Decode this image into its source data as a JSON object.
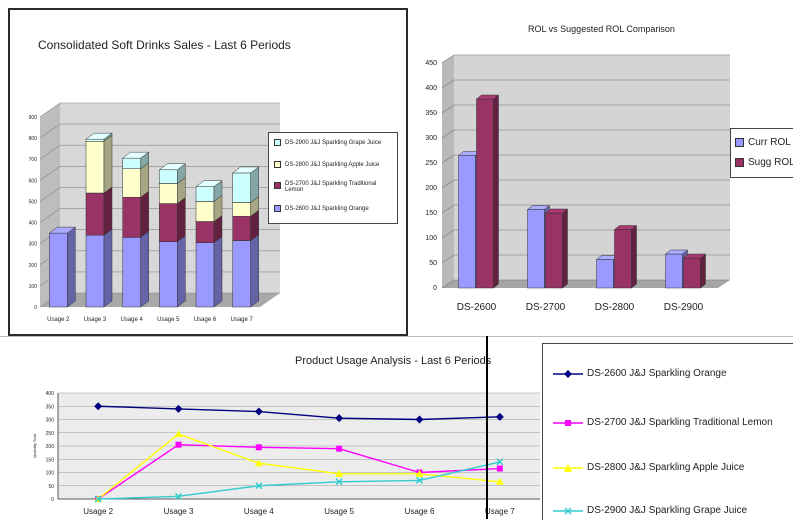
{
  "chart_data": [
    {
      "type": "bar",
      "stacked": true,
      "three_d": true,
      "title": "Consolidated Soft Drinks Sales - Last 6 Periods",
      "categories": [
        "Usage 2",
        "Usage 3",
        "Usage 4",
        "Usage 5",
        "Usage 6",
        "Usage 7"
      ],
      "ylim": [
        0,
        900
      ],
      "yticks": [
        0,
        100,
        200,
        300,
        400,
        500,
        600,
        700,
        800,
        900
      ],
      "series": [
        {
          "name": "DS-2600 J&J Sparkling Orange",
          "color": "#9999ff",
          "values": [
            350,
            340,
            330,
            310,
            305,
            315
          ]
        },
        {
          "name": "DS-2700 J&J Sparkling Traditional Lemon",
          "color": "#993366",
          "values": [
            0,
            200,
            190,
            180,
            100,
            115
          ]
        },
        {
          "name": "DS-2800 J&J Sparkling Apple Juice",
          "color": "#ffffcc",
          "values": [
            0,
            245,
            135,
            95,
            95,
            65
          ]
        },
        {
          "name": "DS-2900 J&J Sparkling Grape Juice",
          "color": "#ccffff",
          "values": [
            0,
            10,
            50,
            65,
            70,
            140
          ]
        }
      ],
      "legend_order": [
        "DS-2900 J&J Sparkling Grape Juice",
        "DS-2800 J&J Sparkling Apple Juice",
        "DS-2700 J&J Sparkling Traditional Lemon",
        "DS-2600 J&J Sparkling Orange"
      ],
      "legend": "right"
    },
    {
      "type": "bar",
      "three_d": true,
      "title": "ROL vs Suggested ROL Comparison",
      "categories": [
        "DS-2600",
        "DS-2700",
        "DS-2800",
        "DS-2900"
      ],
      "ylim": [
        0,
        450
      ],
      "yticks": [
        0,
        50,
        100,
        150,
        200,
        250,
        300,
        350,
        400,
        450
      ],
      "series": [
        {
          "name": "Curr ROL",
          "color": "#9999ff",
          "values": [
            265,
            157,
            57,
            68
          ]
        },
        {
          "name": "Sugg ROL",
          "color": "#993366",
          "values": [
            378,
            150,
            117,
            60
          ]
        }
      ],
      "legend": "right"
    },
    {
      "type": "line",
      "title": "Product Usage Analysis - Last 6 Periods",
      "ylabel": "Quantity Sold",
      "categories": [
        "Usage 2",
        "Usage 3",
        "Usage 4",
        "Usage 5",
        "Usage 6",
        "Usage 7"
      ],
      "ylim": [
        0,
        400
      ],
      "yticks": [
        0,
        50,
        100,
        150,
        200,
        250,
        300,
        350,
        400
      ],
      "series": [
        {
          "name": "DS-2600 J&J Sparkling Orange",
          "color": "#000080",
          "marker": "diamond",
          "values": [
            350,
            340,
            330,
            305,
            300,
            310
          ]
        },
        {
          "name": "DS-2700 J&J Sparkling Traditional Lemon",
          "color": "#ff00ff",
          "marker": "square",
          "values": [
            0,
            205,
            195,
            190,
            100,
            115
          ]
        },
        {
          "name": "DS-2800 J&J Sparkling Apple Juice",
          "color": "#ffff00",
          "marker": "triangle",
          "values": [
            0,
            245,
            135,
            95,
            95,
            65
          ]
        },
        {
          "name": "DS-2900 J&J Sparkling Grape Juice",
          "color": "#33cccc",
          "marker": "x",
          "values": [
            0,
            10,
            50,
            65,
            70,
            140
          ]
        }
      ],
      "legend": "right",
      "grid": true
    }
  ]
}
